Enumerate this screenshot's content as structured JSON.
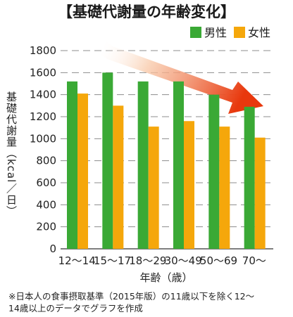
{
  "chart_data": {
    "type": "bar",
    "title": "【基礎代謝量の年齢変化】",
    "categories": [
      "12～14",
      "15～17",
      "18～29",
      "30～49",
      "50～69",
      "70～"
    ],
    "series": [
      {
        "name": "男性",
        "color": "#3aa935",
        "values": [
          1520,
          1600,
          1520,
          1520,
          1400,
          1290
        ]
      },
      {
        "name": "女性",
        "color": "#f5a70b",
        "values": [
          1410,
          1300,
          1110,
          1160,
          1110,
          1010
        ]
      }
    ],
    "xlabel": "年齢（歳）",
    "ylabel": "基礎代謝量（kcal／日）",
    "ylim": [
      0,
      1800
    ],
    "yticks": [
      0,
      200,
      400,
      600,
      800,
      1000,
      1200,
      1400,
      1600,
      1800
    ],
    "grid": true,
    "legend_position": "top-right",
    "note_lines": [
      "※日本人の食事摂取基準（2015年版）の11歳以下を除く12～",
      "14歳以上のデータでグラフを作成"
    ],
    "annotation": "decreasing-trend-arrow"
  }
}
